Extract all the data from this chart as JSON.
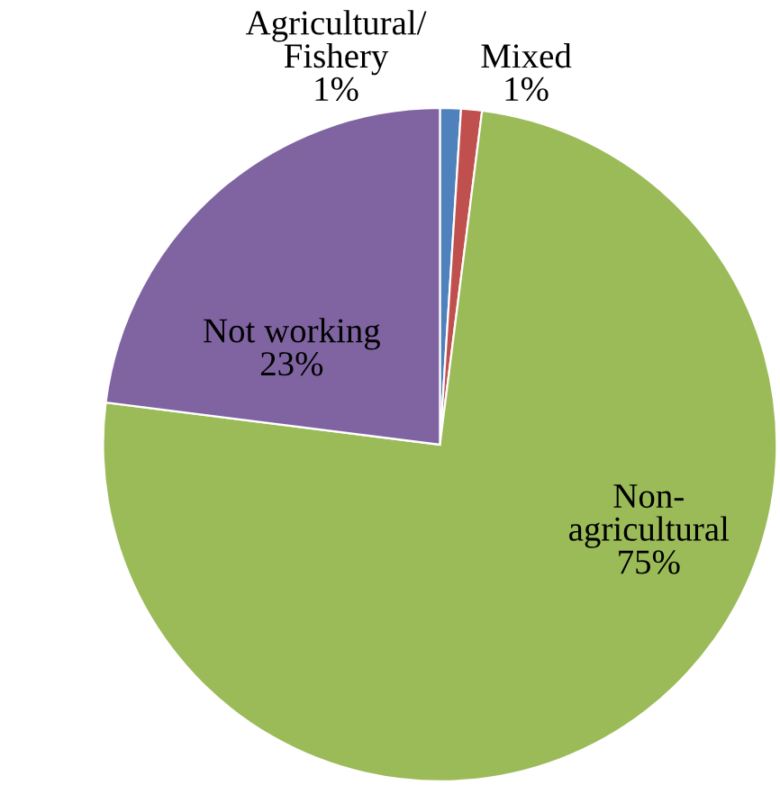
{
  "chart_data": {
    "type": "pie",
    "categories": [
      "Agricultural/Fishery",
      "Mixed",
      "Non-agricultural",
      "Not working"
    ],
    "values": [
      1,
      1,
      75,
      23
    ],
    "colors": [
      "#4f81bd",
      "#c0504d",
      "#9bbb59",
      "#8064a2"
    ],
    "value_labels": [
      "1%",
      "1%",
      "75%",
      "23%"
    ],
    "legend": false
  }
}
